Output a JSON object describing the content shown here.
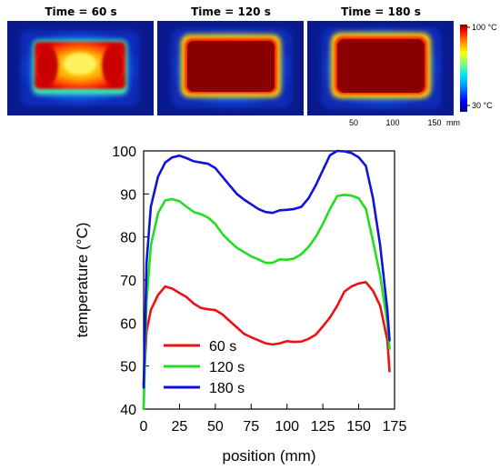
{
  "thermal": {
    "panels": [
      {
        "title": "Time = 60 s",
        "state": "partial"
      },
      {
        "title": "Time = 120 s",
        "state": "full"
      },
      {
        "title": "Time = 180 s",
        "state": "full"
      }
    ],
    "colorbar": {
      "max_label": "100 °C",
      "min_label": "30 °C",
      "max_value": 100,
      "min_value": 30
    },
    "scale_labels": [
      "50",
      "100",
      "150"
    ],
    "scale_unit": "mm"
  },
  "chart_data": {
    "type": "line",
    "xlabel": "position (mm)",
    "ylabel": "temperature (°C)",
    "xlim": [
      0,
      175
    ],
    "ylim": [
      40,
      100
    ],
    "xticks": [
      0,
      25,
      50,
      75,
      100,
      125,
      150,
      175
    ],
    "yticks": [
      40,
      50,
      60,
      70,
      80,
      90,
      100
    ],
    "grid": false,
    "legend_position": "bottom-left",
    "series": [
      {
        "name": "60 s",
        "color": "#ee1111",
        "x": [
          0,
          2,
          5,
          10,
          15,
          20,
          25,
          30,
          35,
          40,
          45,
          50,
          55,
          60,
          65,
          70,
          75,
          80,
          85,
          90,
          95,
          100,
          105,
          110,
          115,
          120,
          125,
          130,
          135,
          140,
          145,
          150,
          155,
          160,
          165,
          170,
          171.5
        ],
        "y": [
          45.5,
          58,
          63,
          66.5,
          68.5,
          68,
          67,
          66,
          64.5,
          63.5,
          63.2,
          63,
          62,
          60.5,
          59,
          57.5,
          56.7,
          56,
          55.3,
          55,
          55.3,
          55.8,
          55.6,
          55.7,
          56.3,
          57.3,
          59.2,
          61.3,
          64,
          67.3,
          68.5,
          69.2,
          69.5,
          67.5,
          64,
          56,
          48.8
        ]
      },
      {
        "name": "120 s",
        "color": "#22dd22",
        "x": [
          0,
          2,
          5,
          10,
          15,
          20,
          25,
          30,
          35,
          40,
          45,
          50,
          55,
          60,
          65,
          70,
          75,
          80,
          85,
          90,
          95,
          100,
          105,
          110,
          115,
          120,
          125,
          130,
          135,
          140,
          145,
          150,
          155,
          160,
          165,
          170,
          171.5
        ],
        "y": [
          40,
          65,
          78,
          85.5,
          88.5,
          88.8,
          88.3,
          87,
          85.8,
          85.3,
          84.5,
          83,
          80.7,
          79,
          77.5,
          76.5,
          75.5,
          74.8,
          74,
          74,
          74.8,
          74.7,
          75,
          76,
          77.7,
          80,
          83,
          86.5,
          89.5,
          89.8,
          89.6,
          89,
          86.5,
          79,
          71,
          60,
          54
        ]
      },
      {
        "name": "180 s",
        "color": "#1111dd",
        "x": [
          0,
          2,
          5,
          10,
          15,
          20,
          25,
          30,
          35,
          40,
          45,
          50,
          55,
          60,
          65,
          70,
          75,
          80,
          85,
          90,
          95,
          100,
          105,
          110,
          115,
          120,
          125,
          130,
          135,
          140,
          145,
          150,
          155,
          160,
          165,
          170,
          171.5
        ],
        "y": [
          45,
          74,
          87,
          94,
          97.3,
          98.5,
          98.9,
          98.3,
          97.6,
          97.3,
          97,
          96,
          94,
          92,
          90,
          88.7,
          87.6,
          86.5,
          85.8,
          85.6,
          86.2,
          86.3,
          86.5,
          87,
          89,
          92,
          95.5,
          99,
          100,
          99.9,
          99.5,
          98.5,
          96.5,
          89,
          78,
          63,
          56
        ]
      }
    ]
  }
}
